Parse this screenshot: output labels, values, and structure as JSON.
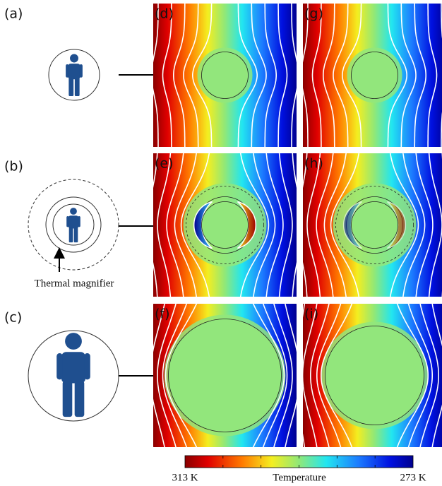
{
  "panel_labels": [
    "(a)",
    "(b)",
    "(c)",
    "(d)",
    "(e)",
    "(f)",
    "(g)",
    "(h)",
    "(i)"
  ],
  "magnifier_label": "Thermal magnifier",
  "colorbar": {
    "min_label": "313 K",
    "title": "Temperature",
    "max_label": "273 K"
  }
}
